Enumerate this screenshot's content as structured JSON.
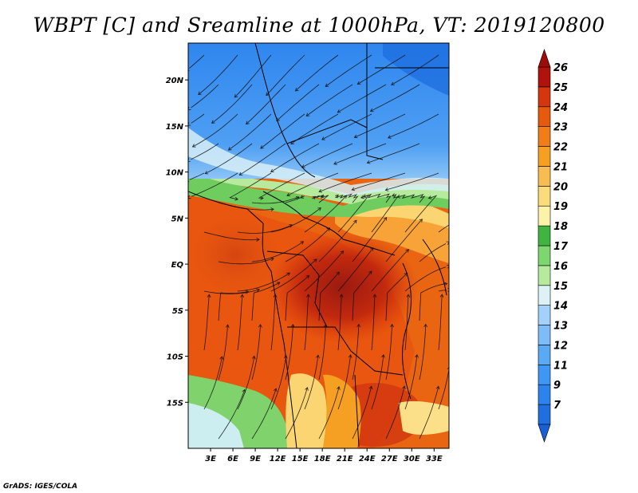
{
  "title": "WBPT [C] and Sreamline at 1000hPa, VT: 2019120800",
  "credit": "GrADS: IGES/COLA",
  "map": {
    "lon_range": [
      0,
      35
    ],
    "lat_range": [
      -20,
      24
    ],
    "lat_ticks": [
      {
        "value": 20,
        "label": "20N"
      },
      {
        "value": 15,
        "label": "15N"
      },
      {
        "value": 10,
        "label": "10N"
      },
      {
        "value": 5,
        "label": "5N"
      },
      {
        "value": 0,
        "label": "EQ"
      },
      {
        "value": -5,
        "label": "5S"
      },
      {
        "value": -10,
        "label": "10S"
      },
      {
        "value": -15,
        "label": "15S"
      }
    ],
    "lon_ticks": [
      {
        "value": 3,
        "label": "3E"
      },
      {
        "value": 6,
        "label": "6E"
      },
      {
        "value": 9,
        "label": "9E"
      },
      {
        "value": 12,
        "label": "12E"
      },
      {
        "value": 15,
        "label": "15E"
      },
      {
        "value": 18,
        "label": "18E"
      },
      {
        "value": 21,
        "label": "21E"
      },
      {
        "value": 24,
        "label": "24E"
      },
      {
        "value": 27,
        "label": "27E"
      },
      {
        "value": 30,
        "label": "30E"
      },
      {
        "value": 33,
        "label": "33E"
      }
    ]
  },
  "colorbar": {
    "levels": [
      {
        "label": "7",
        "color": "#1f6fe0"
      },
      {
        "label": "9",
        "color": "#2b84ee"
      },
      {
        "label": "11",
        "color": "#3d97f3"
      },
      {
        "label": "12",
        "color": "#5aa9f5"
      },
      {
        "label": "13",
        "color": "#7dbcf7"
      },
      {
        "label": "14",
        "color": "#a4d1f9"
      },
      {
        "label": "15",
        "color": "#dcf2f6"
      },
      {
        "label": "16",
        "color": "#b6ea9d"
      },
      {
        "label": "17",
        "color": "#7ed66e"
      },
      {
        "label": "18",
        "color": "#3fb53f"
      },
      {
        "label": "19",
        "color": "#fbf4a8"
      },
      {
        "label": "20",
        "color": "#fbdc7a"
      },
      {
        "label": "21",
        "color": "#f8bd52"
      },
      {
        "label": "22",
        "color": "#f5a022"
      },
      {
        "label": "23",
        "color": "#f07d15"
      },
      {
        "label": "24",
        "color": "#e65a10"
      },
      {
        "label": "25",
        "color": "#d6360e"
      },
      {
        "label": "26",
        "color": "#b0130b"
      }
    ],
    "low_color": "#1a5fd6",
    "high_color": "#9a0d0a"
  }
}
